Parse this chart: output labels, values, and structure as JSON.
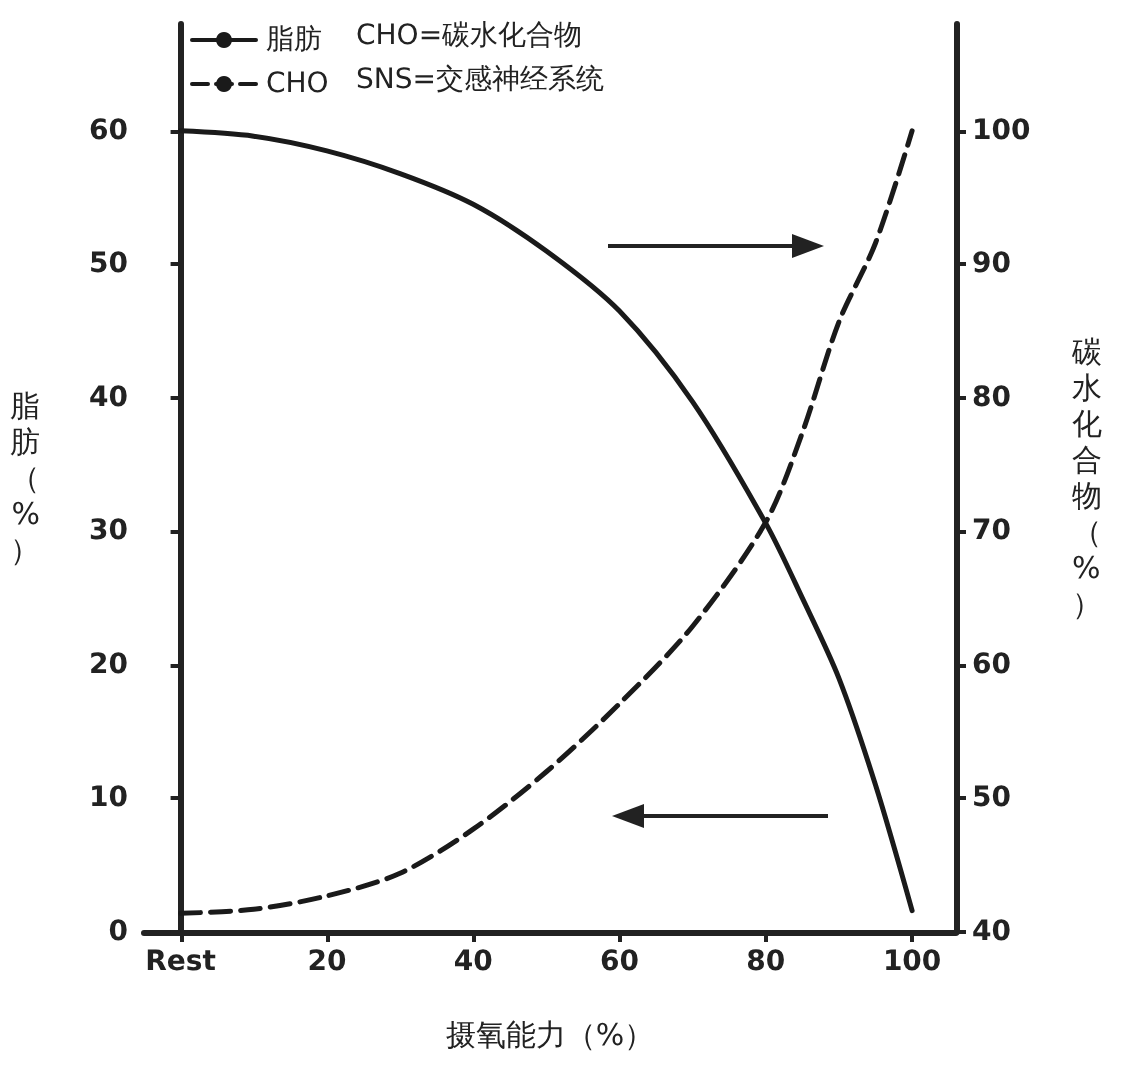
{
  "chart_data": {
    "type": "line",
    "xlabel": "摄氧能力（%）",
    "ylabel": "脂肪（%）",
    "y2label": "碳水化合物（%）",
    "xlim": [
      -5,
      106
    ],
    "xticks": [
      {
        "value": 0,
        "label": "Rest"
      },
      20,
      40,
      60,
      80,
      100
    ],
    "ylim": [
      0,
      68
    ],
    "yticks": [
      0,
      10,
      20,
      30,
      40,
      50,
      60
    ],
    "y2lim": [
      40,
      108
    ],
    "y2ticks": [
      40,
      50,
      60,
      70,
      80,
      90,
      100
    ],
    "x": [
      0,
      10,
      20,
      30,
      40,
      50,
      60,
      70,
      80,
      85,
      90,
      95,
      100
    ],
    "series": [
      {
        "name": "脂肪",
        "color": "#1a1a1a",
        "line_style": "solid",
        "values": [
          60,
          59.6,
          58.5,
          56.8,
          54.5,
          51,
          46.5,
          39.7,
          30.6,
          25,
          19,
          11,
          1.6
        ]
      },
      {
        "name": "CHO",
        "color": "#1a1a1a",
        "line_style": "dashed",
        "axis": "y2",
        "values": [
          41.4,
          41.7,
          42.7,
          44.4,
          47.7,
          52,
          57.1,
          62.9,
          70.7,
          77.4,
          85.7,
          91.6,
          100
        ]
      }
    ],
    "annotations": [
      "CHO=碳水化合物",
      "SNS=交感神经系统"
    ],
    "legend": "top left",
    "grid": false,
    "marker": "none"
  }
}
